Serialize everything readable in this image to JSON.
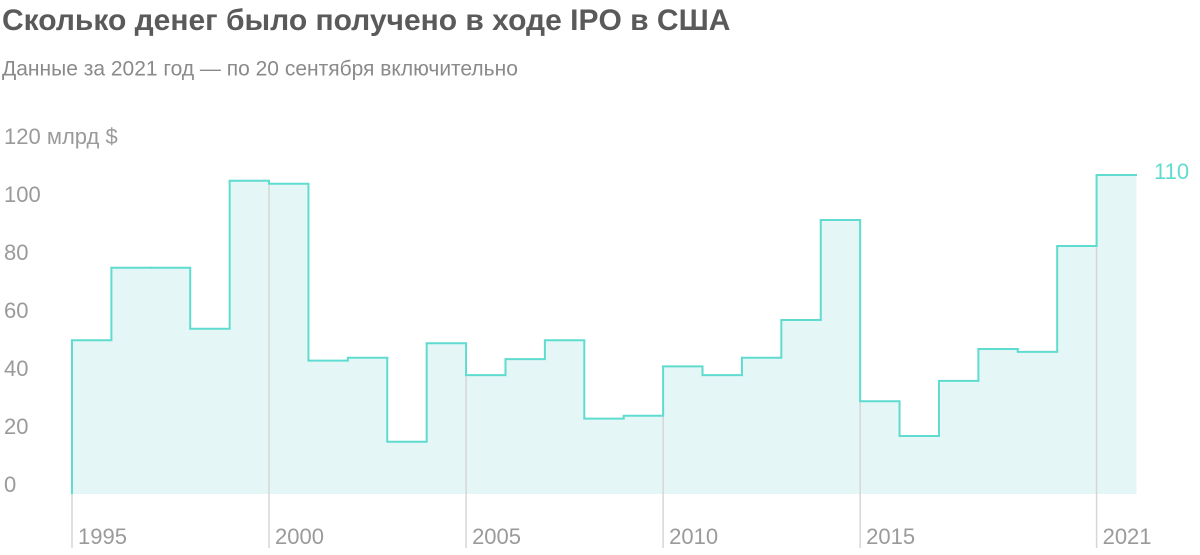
{
  "chart_data": {
    "type": "step",
    "title": "Сколько денег было получено в ходе IPO в США",
    "subtitle": "Данные за 2021 год — по 20 сентября включительно",
    "x": [
      1995,
      1996,
      1997,
      1998,
      1999,
      2000,
      2001,
      2002,
      2003,
      2004,
      2005,
      2006,
      2007,
      2008,
      2009,
      2010,
      2011,
      2012,
      2013,
      2014,
      2015,
      2016,
      2017,
      2018,
      2019,
      2020,
      2021
    ],
    "values": [
      53,
      78,
      78,
      57,
      108,
      107,
      46,
      47,
      18,
      52,
      41,
      46.5,
      53,
      26,
      27,
      44,
      41,
      47,
      60,
      94.5,
      32,
      20,
      39,
      50,
      49,
      85.5,
      110
    ],
    "color": "#5fdccf",
    "fill": "#e4f6f5",
    "highlight_last": true,
    "xlim": [
      1995,
      2022
    ],
    "xticks": [
      1995,
      2000,
      2005,
      2010,
      2015,
      2021
    ],
    "ylim": [
      0,
      120
    ],
    "yticks": [
      0,
      20,
      40,
      60,
      80,
      100,
      {
        "value": 120,
        "label": "120 млрд $"
      }
    ]
  }
}
